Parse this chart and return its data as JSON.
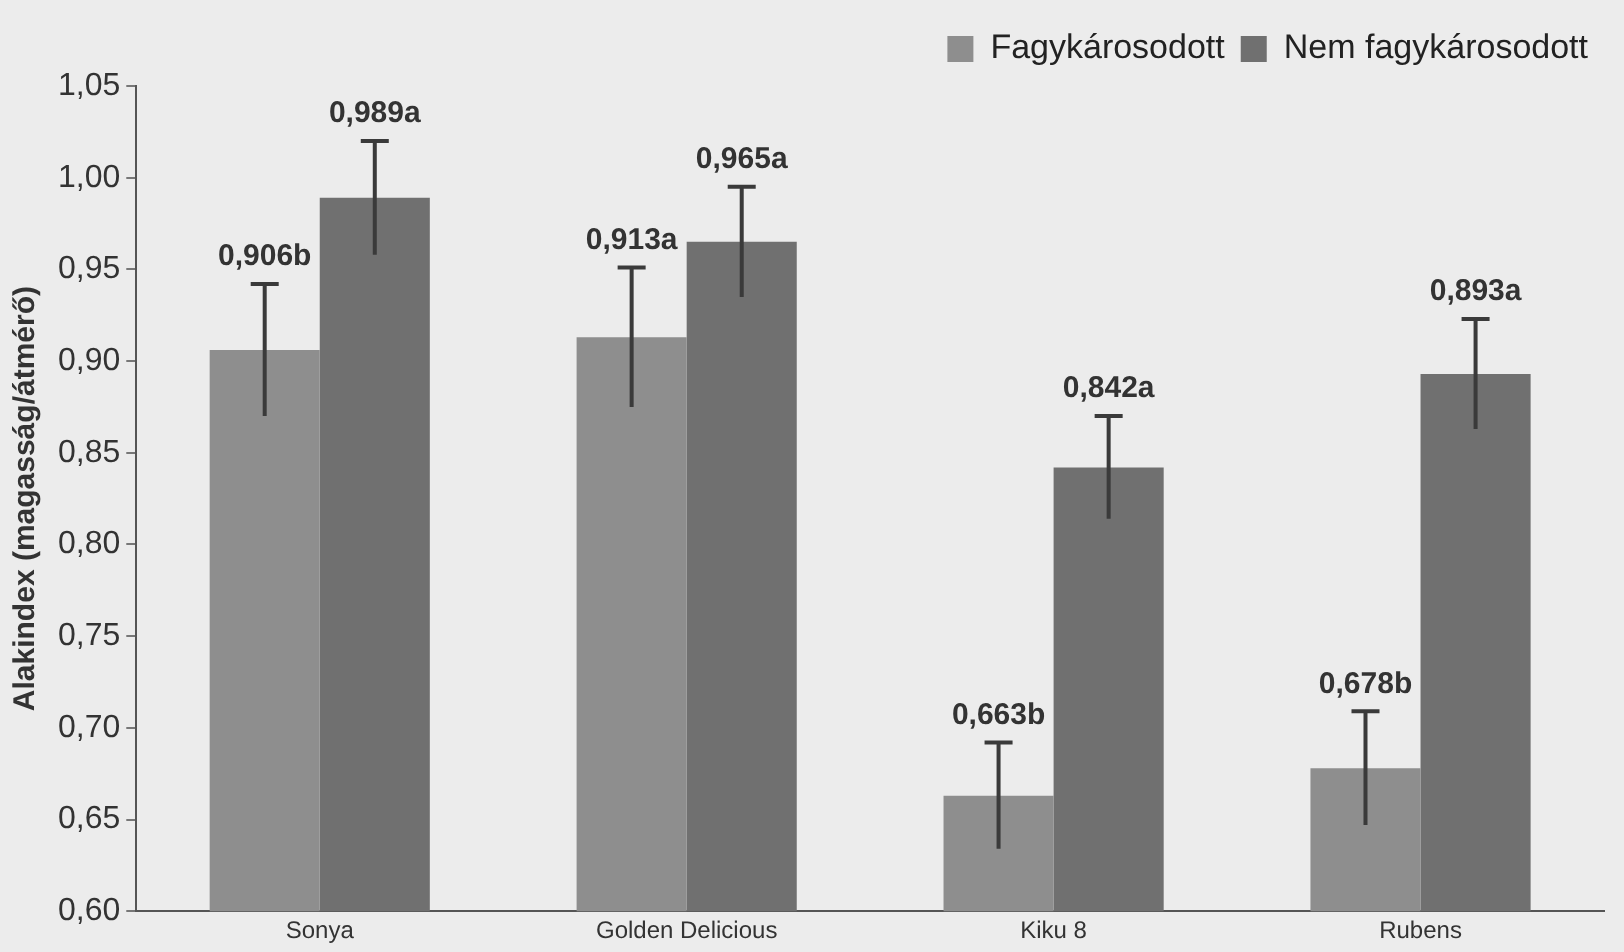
{
  "chart_data": {
    "type": "bar",
    "ylabel": "Alakindex (magasság/átmérő)",
    "categories": [
      "Sonya",
      "Golden Delicious",
      "Kiku 8",
      "Rubens"
    ],
    "series": [
      {
        "name": "Fagykárosodott",
        "color": "#8e8e8e",
        "values": [
          0.906,
          0.913,
          0.663,
          0.678
        ],
        "errors": [
          0.036,
          0.038,
          0.029,
          0.031
        ],
        "value_labels": [
          "0,906b",
          "0,913a",
          "0,663b",
          "0,678b"
        ]
      },
      {
        "name": "Nem fagykárosodott",
        "color": "#707070",
        "values": [
          0.989,
          0.965,
          0.842,
          0.893
        ],
        "errors": [
          0.031,
          0.03,
          0.028,
          0.03
        ],
        "value_labels": [
          "0,989a",
          "0,965a",
          "0,842a",
          "0,893a"
        ]
      }
    ],
    "ylim": [
      0.6,
      1.05
    ],
    "yticks": [
      {
        "value": 0.6,
        "label": "0,60"
      },
      {
        "value": 0.65,
        "label": "0,65"
      },
      {
        "value": 0.7,
        "label": "0,70"
      },
      {
        "value": 0.75,
        "label": "0,75"
      },
      {
        "value": 0.8,
        "label": "0,80"
      },
      {
        "value": 0.85,
        "label": "0,85"
      },
      {
        "value": 0.9,
        "label": "0,90"
      },
      {
        "value": 0.95,
        "label": "0,95"
      },
      {
        "value": 1.0,
        "label": "1,00"
      },
      {
        "value": 1.05,
        "label": "1,05"
      }
    ],
    "grid": false,
    "legend": "top right"
  }
}
